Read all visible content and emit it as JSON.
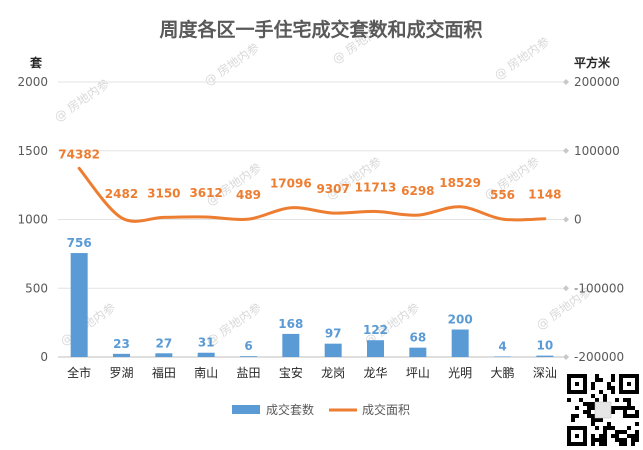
{
  "chart_data": {
    "type": "bar",
    "title": "周度各区一手住宅成交套数和成交面积",
    "ylabel_left": "套",
    "ylabel_right": "平方米",
    "ylim_left": [
      0,
      2000
    ],
    "yticks_left": [
      0,
      500,
      1000,
      1500,
      2000
    ],
    "ylim_right": [
      -200000,
      200000
    ],
    "yticks_right": [
      -200000,
      -100000,
      0,
      100000,
      200000
    ],
    "categories": [
      "全市",
      "罗湖",
      "福田",
      "南山",
      "盐田",
      "宝安",
      "龙岗",
      "龙华",
      "坪山",
      "光明",
      "大鹏",
      "深汕"
    ],
    "series": [
      {
        "name": "成交套数",
        "type": "bar",
        "axis": "left",
        "color": "#5b9bd5",
        "values": [
          756,
          23,
          27,
          31,
          6,
          168,
          97,
          122,
          68,
          200,
          4,
          10
        ]
      },
      {
        "name": "成交面积",
        "type": "line",
        "axis": "right",
        "color": "#ed7d31",
        "values": [
          74382,
          2482,
          3150,
          3612,
          489,
          17096,
          9307,
          11713,
          6298,
          18529,
          556,
          1148
        ]
      }
    ],
    "grid": true,
    "legend_position": "bottom"
  },
  "watermark_text": "@ 房地内参"
}
